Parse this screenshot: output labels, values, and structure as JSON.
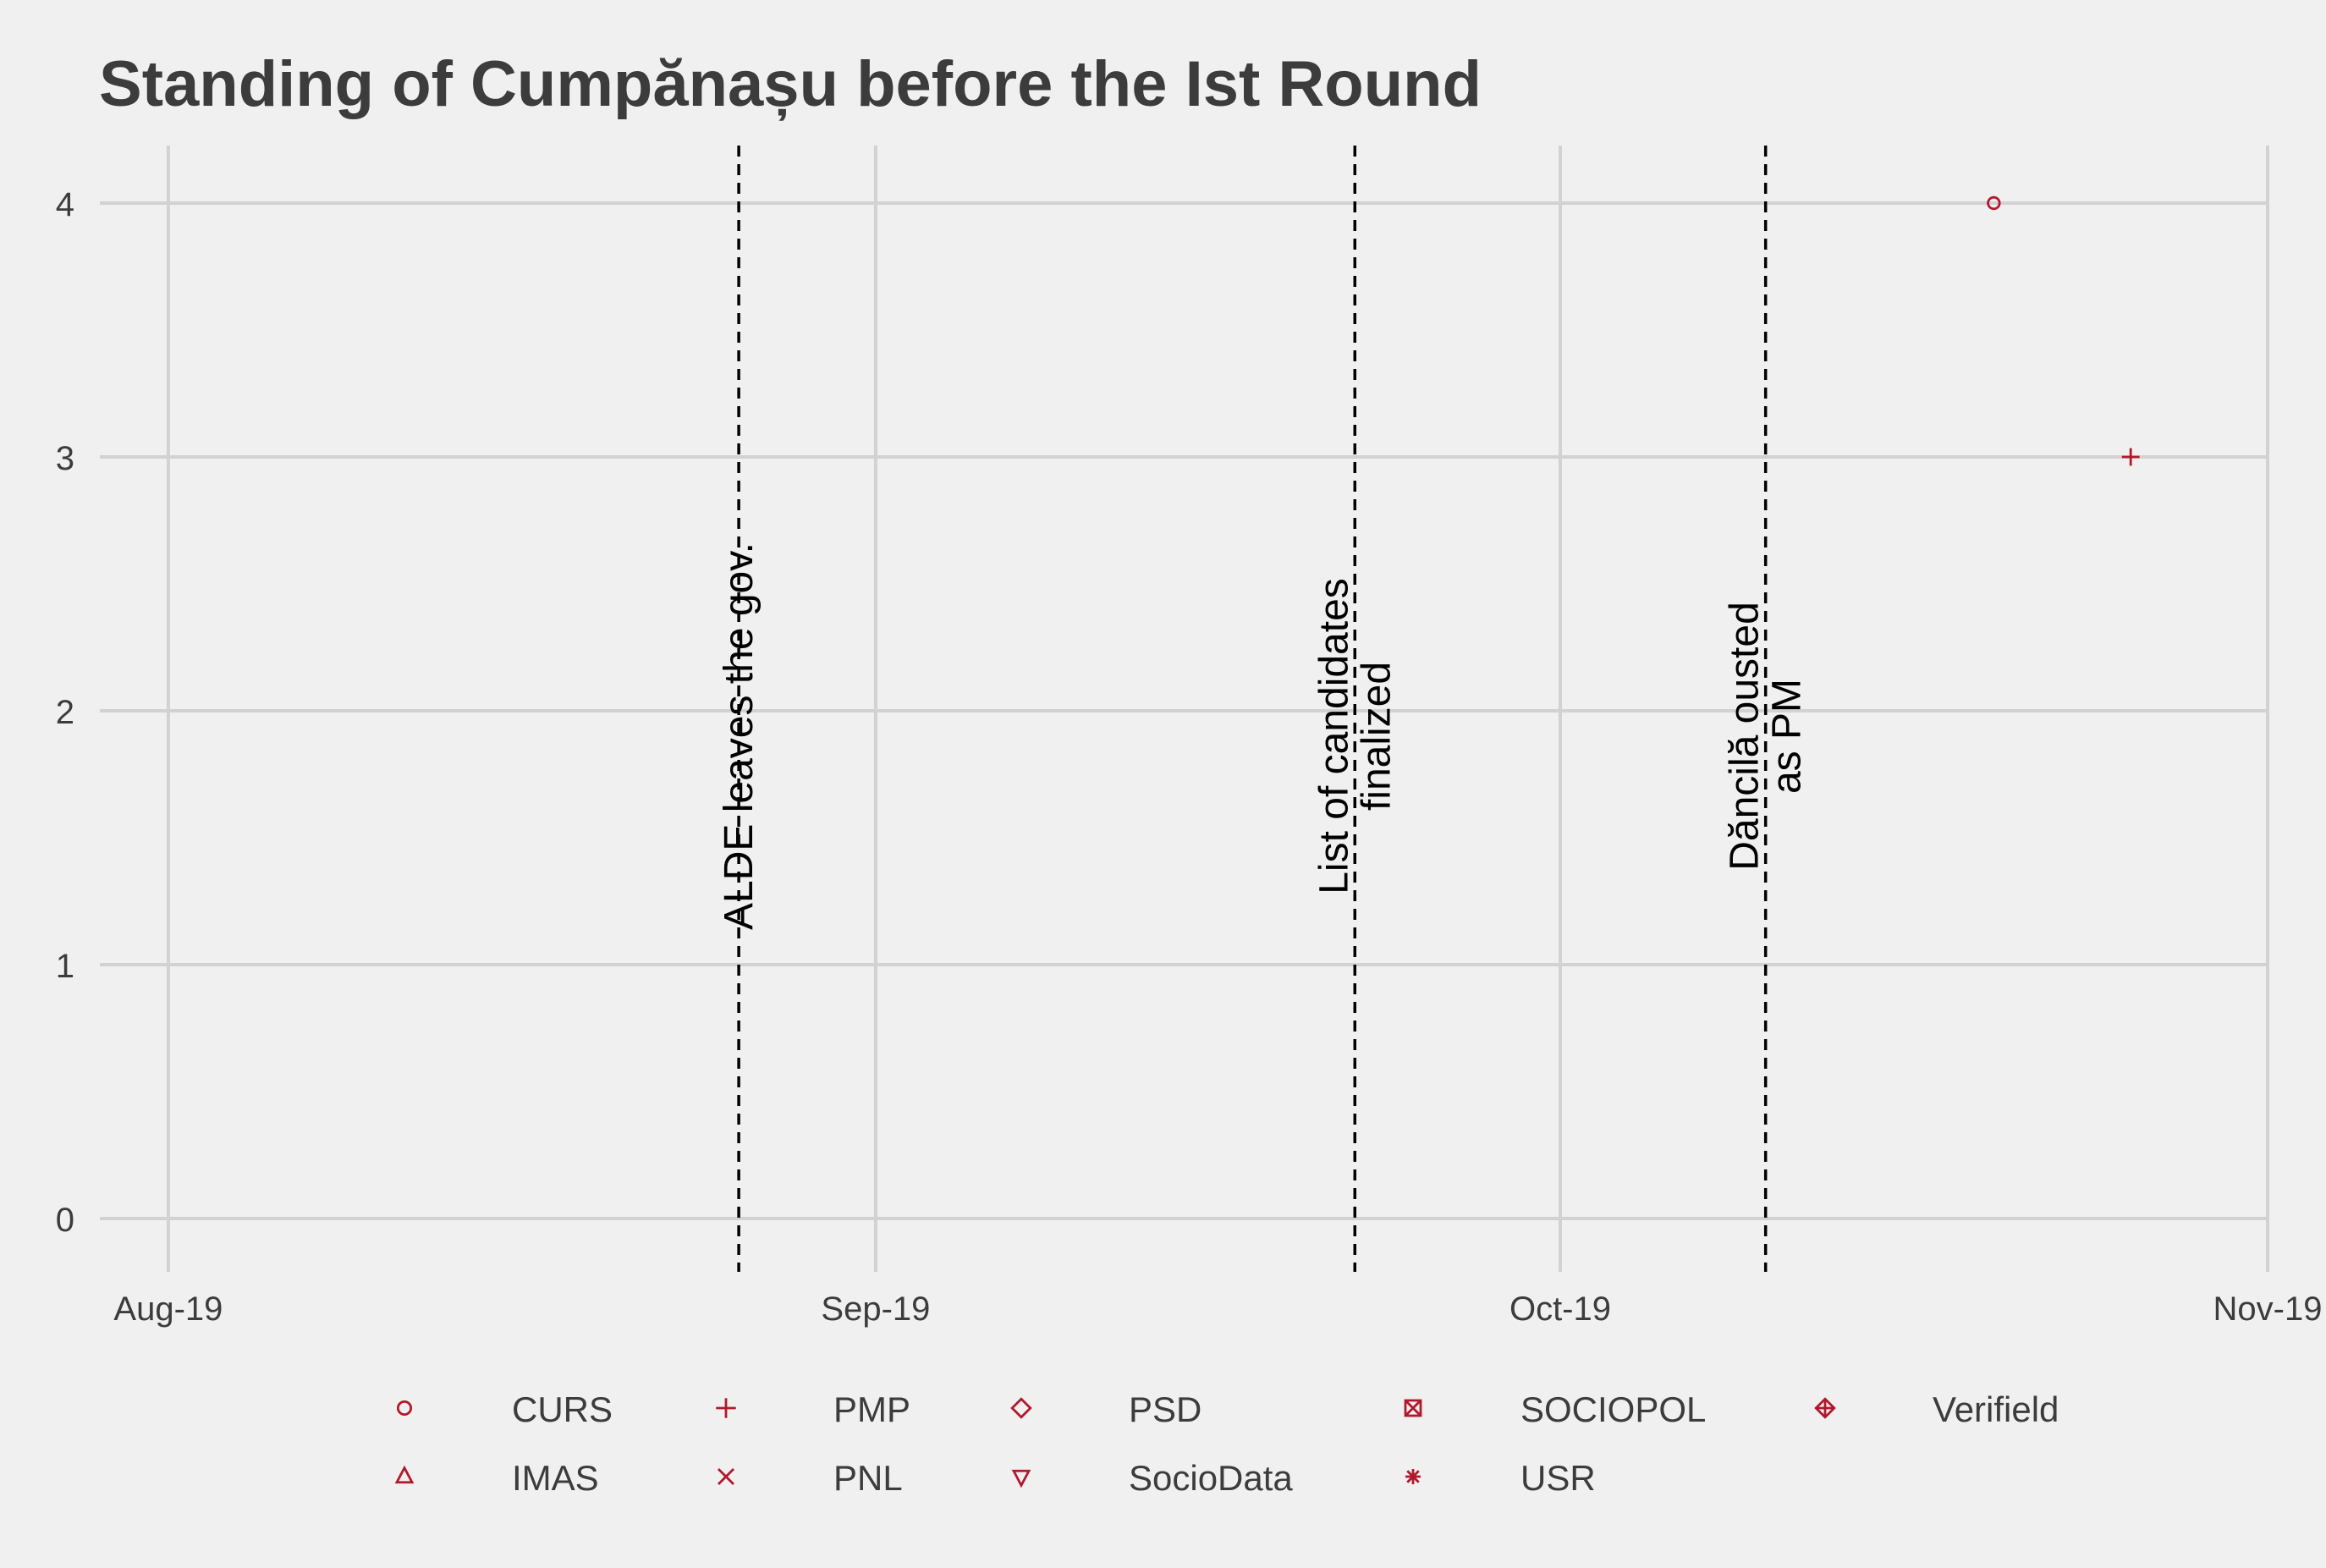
{
  "chart_data": {
    "type": "scatter",
    "title": "Standing of Cumpănașu before the Ist Round",
    "xlabel": "",
    "ylabel": "",
    "x_axis": {
      "ticks": [
        "2019-08-01",
        "2019-09-01",
        "2019-10-01",
        "2019-11-01"
      ],
      "tick_labels": [
        "Aug-19",
        "Sep-19",
        "Oct-19",
        "Nov-19"
      ],
      "range": [
        "2019-07-29",
        "2019-11-01"
      ]
    },
    "y_axis": {
      "ticks": [
        0,
        1,
        2,
        3,
        4
      ],
      "tick_labels": [
        "0",
        "1",
        "2",
        "3",
        "4"
      ],
      "range": [
        -0.2,
        4.2
      ]
    },
    "grid": true,
    "legend_position": "bottom",
    "color": "#b2182b",
    "series": [
      {
        "name": "CURS",
        "shape": "circle",
        "points": [
          {
            "x": "2019-10-20",
            "y": 4
          }
        ]
      },
      {
        "name": "PMP",
        "shape": "plus",
        "points": [
          {
            "x": "2019-10-26",
            "y": 3
          }
        ]
      },
      {
        "name": "PSD",
        "shape": "diamond",
        "points": []
      },
      {
        "name": "SOCIOPOL",
        "shape": "boxed-x",
        "points": []
      },
      {
        "name": "Verifield",
        "shape": "circled-plus-diamond",
        "points": []
      },
      {
        "name": "IMAS",
        "shape": "triangle-up",
        "points": []
      },
      {
        "name": "PNL",
        "shape": "cross",
        "points": []
      },
      {
        "name": "SocioData",
        "shape": "triangle-down",
        "points": []
      },
      {
        "name": "USR",
        "shape": "asterisk",
        "points": []
      }
    ],
    "events": [
      {
        "date": "2019-08-26",
        "lines": [
          "ALDE leaves the gov."
        ],
        "y_center": 1.9
      },
      {
        "date": "2019-09-22",
        "lines": [
          "List of candidates",
          "finalized"
        ],
        "y_center": 1.9
      },
      {
        "date": "2019-10-10",
        "lines": [
          "Dăncilă ousted",
          "as PM"
        ],
        "y_center": 1.9
      }
    ]
  }
}
